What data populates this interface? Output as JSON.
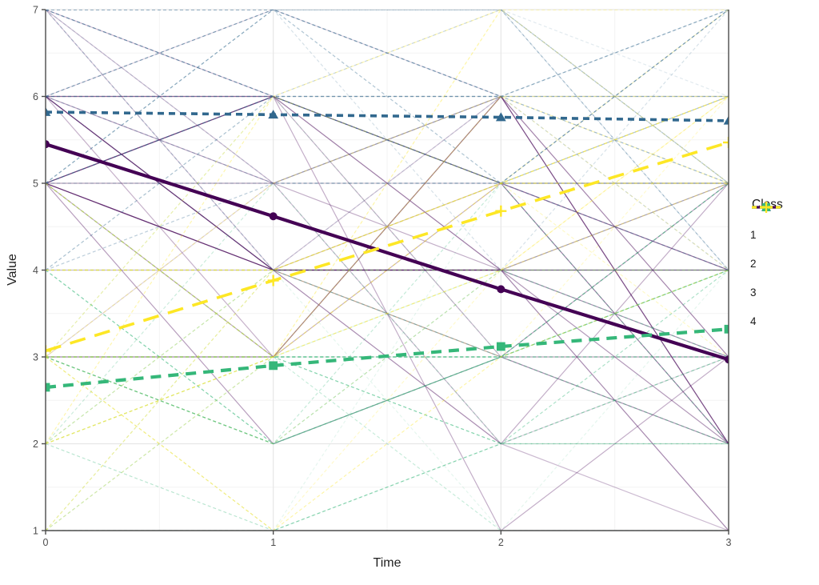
{
  "figure": {
    "background": "#ffffff"
  },
  "axes": {
    "x": {
      "label": "Time",
      "range": [
        0,
        3
      ],
      "tick_values": [
        0,
        1,
        2,
        3
      ],
      "tick_labels": [
        "0",
        "1",
        "2",
        "3"
      ]
    },
    "y": {
      "label": "Value",
      "range": [
        1,
        7
      ],
      "tick_values": [
        1,
        2,
        3,
        4,
        5,
        6,
        7
      ],
      "tick_labels": [
        "1",
        "2",
        "3",
        "4",
        "5",
        "6",
        "7"
      ]
    }
  },
  "legend": {
    "title": "Class",
    "position": "right"
  },
  "chart_data": {
    "type": "line",
    "title": "",
    "xlabel": "Time",
    "ylabel": "Value",
    "xlim": [
      0,
      3
    ],
    "ylim": [
      1,
      7
    ],
    "grid": {
      "major": true,
      "minor": true,
      "major_step": 1,
      "minor_step": 0.5
    },
    "x": [
      0,
      1,
      2,
      3
    ],
    "series": [
      {
        "name": "1",
        "values": [
          5.45,
          4.62,
          3.78,
          2.97
        ],
        "color": "#440154",
        "linestyle": "solid",
        "dash": "",
        "marker": "circle",
        "linewidth": 4.2
      },
      {
        "name": "2",
        "values": [
          5.82,
          5.79,
          5.76,
          5.72
        ],
        "color": "#31688E",
        "linestyle": "dashed",
        "dash": "8 6",
        "marker": "triangle",
        "linewidth": 3.6
      },
      {
        "name": "3",
        "values": [
          2.65,
          2.9,
          3.12,
          3.32
        ],
        "color": "#35B779",
        "linestyle": "dashed",
        "dash": "13 9",
        "marker": "square",
        "linewidth": 4.2
      },
      {
        "name": "4",
        "values": [
          3.07,
          3.88,
          4.68,
          5.47
        ],
        "color": "#FDE725",
        "linestyle": "longdash",
        "dash": "20 12",
        "marker": "plus",
        "linewidth": 3.6
      }
    ],
    "background_individual_trajectories": {
      "description": "Thin semi-transparent individual trajectories taking integer values 1-7 at each time; colored and dashed according to latent class (class 1 solid, classes 2-4 dashed)",
      "seed": 42,
      "counts_per_class": [
        30,
        25,
        25,
        20
      ],
      "noise_scale": 2.2,
      "value_range": [
        1,
        7
      ],
      "linewidth": 1.2,
      "opacity_range": [
        0.12,
        0.42
      ],
      "thin_dash": "4 3"
    }
  },
  "style": {
    "axis_line_color": "#4d4d4d",
    "tick_label_color": "#4d4d4d",
    "axis_title_color": "#1f1f1f",
    "major_grid_color": "#e7e7e7",
    "minor_grid_color": "#f3f3f3",
    "panel_background": "#ffffff"
  }
}
